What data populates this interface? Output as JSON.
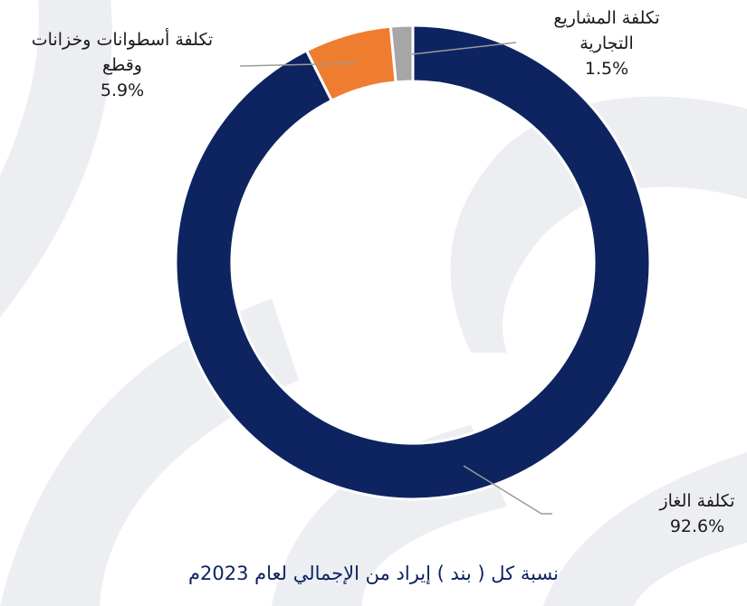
{
  "chart_data": {
    "type": "pie",
    "donut": true,
    "title": "نسبة كل ( بند ) إيراد من الإجمالي لعام 2023م",
    "categories": [
      "تكلفة الغاز",
      "تكلفة أسطوانات وخزانات وقطع",
      "تكلفة المشاريع التجارية"
    ],
    "values": [
      92.6,
      5.9,
      1.5
    ],
    "value_labels": [
      "92.6%",
      "5.9%",
      "1.5%"
    ],
    "colors": [
      "#0d2461",
      "#ee7d2f",
      "#a6a6a6"
    ]
  }
}
